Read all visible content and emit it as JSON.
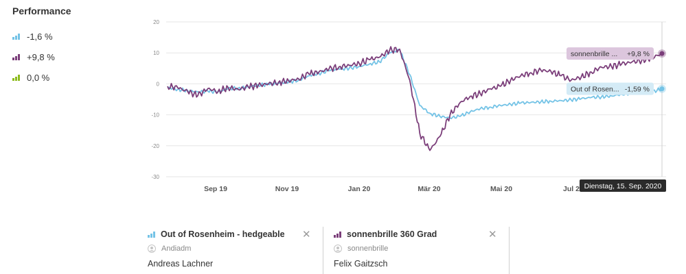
{
  "legend": {
    "title": "Performance",
    "items": [
      {
        "label": "-1,6 %",
        "color": "#74c3e6"
      },
      {
        "label": "+9,8 %",
        "color": "#7b3e7a"
      },
      {
        "label": "0,0 %",
        "color": "#8dbb1e"
      }
    ]
  },
  "chart_data": {
    "type": "line",
    "ylim": [
      -30,
      20
    ],
    "y_ticks": [
      "20",
      "10",
      "0",
      "-10",
      "-20",
      "-30"
    ],
    "x_ticks": [
      "Sep 19",
      "Nov 19",
      "Jan 20",
      "Mär 20",
      "Mai 20",
      "Jul 2"
    ],
    "grid": true,
    "series": [
      {
        "name": "Out of Rosenheim - hedgeable",
        "color": "#74c3e6",
        "end_label": "Out of Rosen...",
        "end_value_label": "-1,59 %",
        "values": [
          -1.2,
          -1.8,
          -2.2,
          -2.6,
          -2.4,
          -2.6,
          -1.5,
          -1.4,
          -1.0,
          -0.4,
          -0.2,
          0.2,
          0.6,
          1.2,
          2.6,
          3.4,
          4.2,
          4.8,
          5.0,
          5.6,
          6.4,
          7.1,
          10.0,
          11.0,
          3.0,
          -7.0,
          -9.5,
          -10.5,
          -11.0,
          -10.5,
          -9.0,
          -8.0,
          -7.5,
          -7.0,
          -6.6,
          -6.2,
          -6.0,
          -5.8,
          -5.6,
          -5.4,
          -5.2,
          -4.8,
          -4.4,
          -4.2,
          -3.9,
          -3.4,
          -2.8,
          -2.6,
          -2.6,
          -1.6
        ]
      },
      {
        "name": "sonnenbrille 360 Grad",
        "color": "#7b3e7a",
        "end_label": "sonnenbrille ...",
        "end_value_label": "+9,8 %",
        "values": [
          -0.8,
          -1.2,
          -2.5,
          -3.8,
          -1.5,
          -2.5,
          -1.2,
          -1.8,
          -1.0,
          -0.5,
          0.0,
          0.5,
          1.0,
          1.6,
          3.2,
          3.8,
          4.8,
          5.5,
          6.0,
          6.6,
          7.8,
          8.6,
          10.8,
          11.2,
          1.2,
          -16.0,
          -21.5,
          -17.0,
          -10.0,
          -6.0,
          -4.0,
          -3.2,
          -1.6,
          -0.8,
          1.2,
          2.6,
          3.6,
          4.4,
          4.0,
          2.6,
          1.2,
          2.2,
          3.8,
          5.4,
          5.6,
          6.4,
          7.0,
          7.6,
          8.4,
          9.8
        ]
      }
    ]
  },
  "tooltip": {
    "date": "Dienstag, 15. Sep. 2020"
  },
  "cards": [
    {
      "color": "#74c3e6",
      "title": "Out of Rosenheim - hedgeable",
      "user": "Andiadm",
      "owner": "Andreas Lachner"
    },
    {
      "color": "#7b3e7a",
      "title": "sonnenbrille 360 Grad",
      "user": "sonnenbrille",
      "owner": "Felix Gaitzsch"
    }
  ]
}
